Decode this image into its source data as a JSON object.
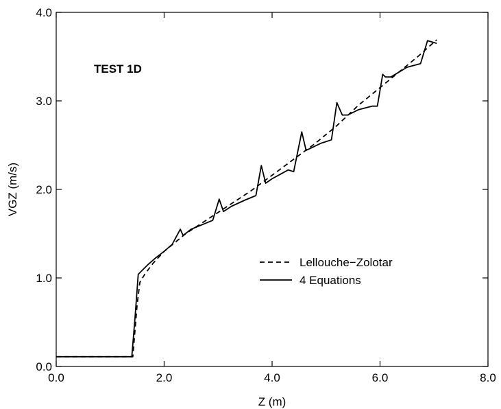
{
  "chart_data": {
    "type": "line",
    "title": "",
    "annotation": "TEST 1D",
    "xlabel": "Z (m)",
    "ylabel": "VGZ (m/s)",
    "xlim": [
      0.0,
      8.0
    ],
    "ylim": [
      0.0,
      4.0
    ],
    "xticks": [
      0.0,
      2.0,
      4.0,
      6.0,
      8.0
    ],
    "yticks": [
      0.0,
      1.0,
      2.0,
      3.0,
      4.0
    ],
    "xtick_labels": [
      "0.0",
      "2.0",
      "4.0",
      "6.0",
      "8.0"
    ],
    "ytick_labels": [
      "0.0",
      "1.0",
      "2.0",
      "3.0",
      "4.0"
    ],
    "grid": false,
    "legend_position": "center-right",
    "series": [
      {
        "name": "Lellouche−Zolotar",
        "style": "dashed",
        "color": "#000000",
        "x": [
          0.0,
          1.42,
          1.5,
          1.55,
          1.65,
          1.8,
          2.0,
          2.2,
          2.4,
          2.8,
          3.2,
          3.6,
          4.0,
          4.4,
          4.8,
          5.2,
          5.6,
          6.0,
          6.4,
          6.7,
          7.05
        ],
        "y": [
          0.11,
          0.11,
          0.7,
          0.95,
          1.05,
          1.17,
          1.3,
          1.4,
          1.5,
          1.66,
          1.82,
          1.98,
          2.16,
          2.34,
          2.52,
          2.72,
          2.95,
          3.15,
          3.35,
          3.5,
          3.69
        ]
      },
      {
        "name": "4 Equations",
        "style": "solid",
        "color": "#000000",
        "x": [
          0.0,
          1.4,
          1.46,
          1.52,
          1.6,
          1.7,
          1.85,
          2.0,
          2.15,
          2.3,
          2.35,
          2.5,
          2.7,
          2.9,
          3.02,
          3.1,
          3.25,
          3.5,
          3.7,
          3.8,
          3.88,
          4.0,
          4.3,
          4.4,
          4.55,
          4.63,
          4.9,
          5.1,
          5.2,
          5.3,
          5.4,
          5.6,
          5.85,
          5.95,
          6.05,
          6.1,
          6.2,
          6.5,
          6.75,
          6.88,
          7.05
        ],
        "y": [
          0.11,
          0.11,
          0.55,
          1.04,
          1.09,
          1.15,
          1.23,
          1.3,
          1.38,
          1.55,
          1.48,
          1.55,
          1.6,
          1.65,
          1.89,
          1.75,
          1.81,
          1.88,
          1.93,
          2.27,
          2.07,
          2.12,
          2.22,
          2.2,
          2.65,
          2.44,
          2.52,
          2.56,
          2.98,
          2.84,
          2.84,
          2.9,
          2.94,
          2.94,
          3.3,
          3.27,
          3.27,
          3.38,
          3.42,
          3.68,
          3.65
        ]
      }
    ]
  }
}
